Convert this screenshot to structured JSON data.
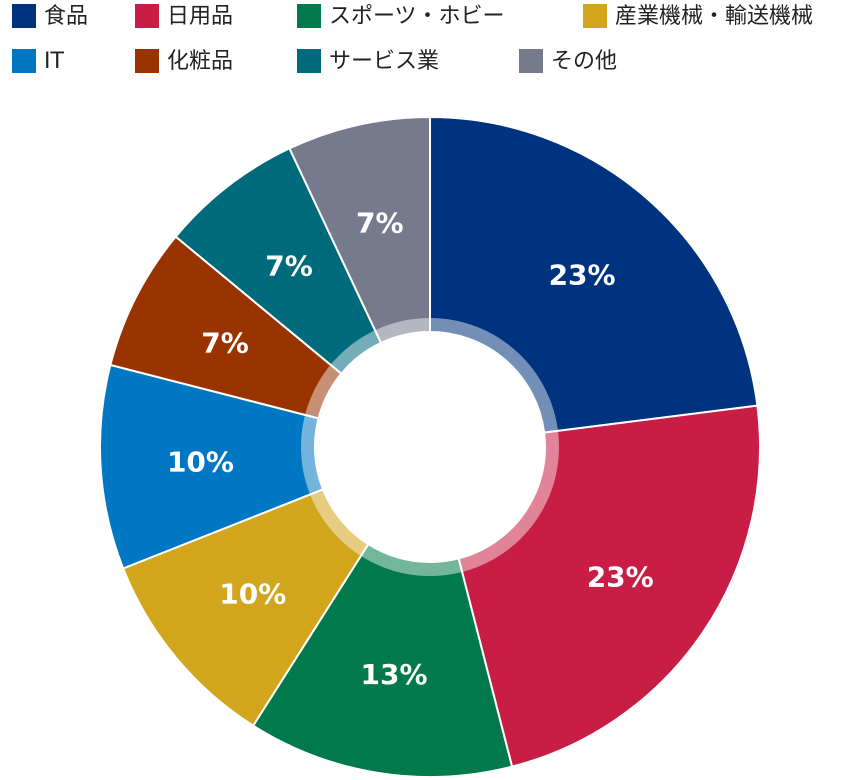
{
  "chart_data": {
    "type": "donut",
    "categories": [
      "食品",
      "日用品",
      "スポーツ・ホビー",
      "産業機械・輸送機械",
      "IT",
      "化粧品",
      "サービス業",
      "その他"
    ],
    "values": [
      23,
      23,
      13,
      10,
      10,
      7,
      7,
      7
    ],
    "value_labels": [
      "23%",
      "23%",
      "13%",
      "10%",
      "10%",
      "7%",
      "7%",
      "7%"
    ],
    "colors": [
      "#00337f",
      "#c81e45",
      "#007a4c",
      "#d1a51c",
      "#0077c2",
      "#993300",
      "#006a7d",
      "#777a8c"
    ],
    "legend": "top"
  }
}
